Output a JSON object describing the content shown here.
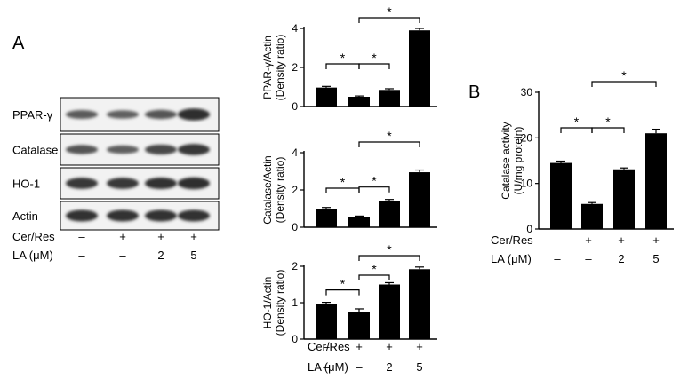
{
  "figure": {
    "panel_a_label": "A",
    "panel_b_label": "B"
  },
  "conditions": {
    "row1_label": "Cer/Res",
    "row2_label": "LA (μM)",
    "row1_values": [
      "–",
      "+",
      "+",
      "+"
    ],
    "row2_values": [
      "–",
      "–",
      "2",
      "5"
    ]
  },
  "blot": {
    "rows": [
      {
        "label": "PPAR-γ",
        "band_intensity": [
          0.55,
          0.5,
          0.6,
          0.95
        ]
      },
      {
        "label": "Catalase",
        "band_intensity": [
          0.6,
          0.5,
          0.7,
          0.85
        ]
      },
      {
        "label": "HO-1",
        "band_intensity": [
          0.85,
          0.85,
          0.9,
          0.95
        ]
      },
      {
        "label": "Actin",
        "band_intensity": [
          0.9,
          0.9,
          0.9,
          0.9
        ]
      }
    ]
  },
  "chart_data": [
    {
      "type": "bar",
      "id": "ppar",
      "ylabel_lines": [
        "PPAR-γ/Actin",
        "(Density ratio)"
      ],
      "categories": [
        "1",
        "2",
        "3",
        "4"
      ],
      "values": [
        0.97,
        0.5,
        0.85,
        3.9
      ],
      "errors": [
        0.06,
        0.04,
        0.06,
        0.1
      ],
      "ylim": [
        0,
        4
      ],
      "yticks": [
        0,
        2,
        4
      ],
      "significance": [
        {
          "from": 0,
          "to": 1,
          "label": "*",
          "level": 1
        },
        {
          "from": 1,
          "to": 2,
          "label": "*",
          "level": 1
        },
        {
          "from": 1,
          "to": 3,
          "label": "*",
          "level": 2
        }
      ]
    },
    {
      "type": "bar",
      "id": "catalase",
      "ylabel_lines": [
        "Catalase/Actin",
        "(Density ratio)"
      ],
      "categories": [
        "1",
        "2",
        "3",
        "4"
      ],
      "values": [
        1.0,
        0.55,
        1.4,
        2.95
      ],
      "errors": [
        0.06,
        0.05,
        0.09,
        0.12
      ],
      "ylim": [
        0,
        4
      ],
      "yticks": [
        0,
        2,
        4
      ],
      "significance": [
        {
          "from": 0,
          "to": 1,
          "label": "*",
          "level": 1
        },
        {
          "from": 1,
          "to": 2,
          "label": "*",
          "level": 1
        },
        {
          "from": 1,
          "to": 3,
          "label": "*",
          "level": 2
        }
      ]
    },
    {
      "type": "bar",
      "id": "ho1",
      "ylabel_lines": [
        "HO-1/Actin",
        "(Density ratio)"
      ],
      "categories": [
        "1",
        "2",
        "3",
        "4"
      ],
      "values": [
        0.97,
        0.75,
        1.5,
        1.92
      ],
      "errors": [
        0.04,
        0.08,
        0.05,
        0.06
      ],
      "ylim": [
        0,
        2
      ],
      "yticks": [
        0,
        1,
        2
      ],
      "significance": [
        {
          "from": 0,
          "to": 1,
          "label": "*",
          "level": 1
        },
        {
          "from": 1,
          "to": 2,
          "label": "*",
          "level": 1
        },
        {
          "from": 1,
          "to": 3,
          "label": "*",
          "level": 2
        }
      ]
    },
    {
      "type": "bar",
      "id": "activity",
      "ylabel_lines": [
        "Catalase activity",
        "(U/mg protein)"
      ],
      "categories": [
        "1",
        "2",
        "3",
        "4"
      ],
      "values": [
        14.5,
        5.5,
        13.1,
        21.0
      ],
      "errors": [
        0.4,
        0.3,
        0.3,
        0.9
      ],
      "ylim": [
        0,
        30
      ],
      "yticks": [
        0,
        10,
        20,
        30
      ],
      "significance": [
        {
          "from": 0,
          "to": 1,
          "label": "*",
          "level": 1
        },
        {
          "from": 1,
          "to": 2,
          "label": "*",
          "level": 1
        },
        {
          "from": 1,
          "to": 3,
          "label": "*",
          "level": 2
        }
      ]
    }
  ]
}
